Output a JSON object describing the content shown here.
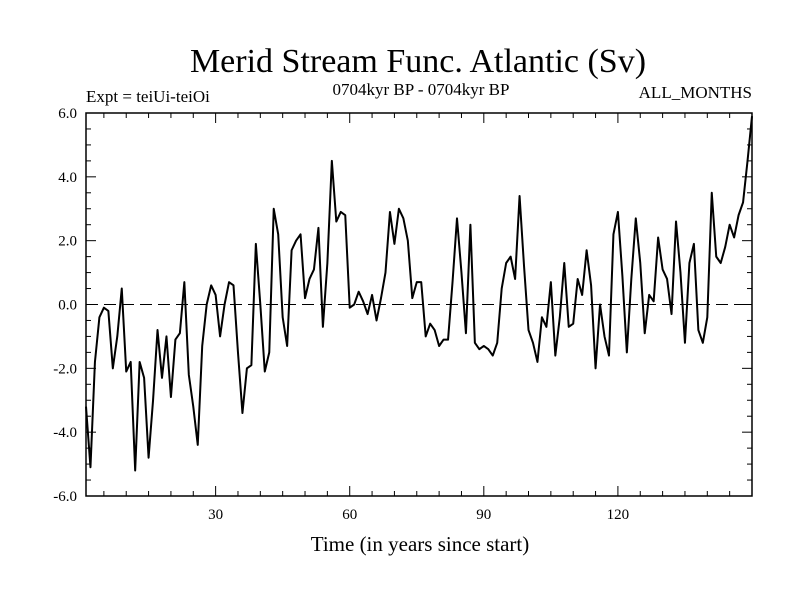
{
  "chart_data": {
    "type": "line",
    "title": "Merid Stream Func. Atlantic (Sv)",
    "subtitle_left": "Expt = teiUi-teiOi",
    "subtitle_center": "0704kyr BP - 0704kyr BP",
    "subtitle_right": "ALL_MONTHS",
    "xlabel": "Time (in years since start)",
    "ylabel": "",
    "xlim": [
      1,
      150
    ],
    "ylim": [
      -6,
      6
    ],
    "xticks": [
      30,
      60,
      90,
      120
    ],
    "xtick_labels": [
      "30",
      "60",
      "90",
      "120"
    ],
    "yticks": [
      6,
      4,
      2,
      0,
      -2,
      -4,
      -6
    ],
    "ytick_labels": [
      "6.0",
      "4.0",
      "2.0",
      "0.0",
      "-2.0",
      "-4.0",
      "-6.0"
    ],
    "reference_line": 0,
    "series": [
      {
        "name": "Merid Stream Func.",
        "color": "#000000",
        "x": [
          1,
          2,
          3,
          4,
          5,
          6,
          7,
          8,
          9,
          10,
          11,
          12,
          13,
          14,
          15,
          16,
          17,
          18,
          19,
          20,
          21,
          22,
          23,
          24,
          25,
          26,
          27,
          28,
          29,
          30,
          31,
          32,
          33,
          34,
          35,
          36,
          37,
          38,
          39,
          40,
          41,
          42,
          43,
          44,
          45,
          46,
          47,
          48,
          49,
          50,
          51,
          52,
          53,
          54,
          55,
          56,
          57,
          58,
          59,
          60,
          61,
          62,
          63,
          64,
          65,
          66,
          67,
          68,
          69,
          70,
          71,
          72,
          73,
          74,
          75,
          76,
          77,
          78,
          79,
          80,
          81,
          82,
          83,
          84,
          85,
          86,
          87,
          88,
          89,
          90,
          91,
          92,
          93,
          94,
          95,
          96,
          97,
          98,
          99,
          100,
          101,
          102,
          103,
          104,
          105,
          106,
          107,
          108,
          109,
          110,
          111,
          112,
          113,
          114,
          115,
          116,
          117,
          118,
          119,
          120,
          121,
          122,
          123,
          124,
          125,
          126,
          127,
          128,
          129,
          130,
          131,
          132,
          133,
          134,
          135,
          136,
          137,
          138,
          139,
          140,
          141,
          142,
          143,
          144,
          145,
          146,
          147,
          148,
          149,
          150
        ],
        "values": [
          -3.2,
          -5.1,
          -1.8,
          -0.4,
          -0.1,
          -0.2,
          -2.0,
          -1.0,
          0.5,
          -2.1,
          -1.8,
          -5.2,
          -1.8,
          -2.3,
          -4.8,
          -3.0,
          -0.8,
          -2.3,
          -1.0,
          -2.9,
          -1.1,
          -0.9,
          0.7,
          -2.2,
          -3.2,
          -4.4,
          -1.3,
          0.0,
          0.6,
          0.3,
          -1.0,
          0.0,
          0.7,
          0.6,
          -1.5,
          -3.4,
          -2.0,
          -1.9,
          1.9,
          0.0,
          -2.1,
          -1.5,
          3.0,
          2.2,
          -0.4,
          -1.3,
          1.7,
          2.0,
          2.2,
          0.2,
          0.8,
          1.1,
          2.4,
          -0.7,
          1.3,
          4.5,
          2.6,
          2.9,
          2.8,
          -0.1,
          0.0,
          0.4,
          0.1,
          -0.3,
          0.3,
          -0.5,
          0.2,
          1.0,
          2.9,
          1.9,
          3.0,
          2.7,
          2.0,
          0.2,
          0.7,
          0.7,
          -1.0,
          -0.6,
          -0.8,
          -1.3,
          -1.1,
          -1.1,
          0.7,
          2.7,
          1.0,
          -0.9,
          2.5,
          -1.2,
          -1.4,
          -1.3,
          -1.4,
          -1.6,
          -1.2,
          0.5,
          1.3,
          1.5,
          0.8,
          3.4,
          1.2,
          -0.8,
          -1.2,
          -1.8,
          -0.4,
          -0.7,
          0.7,
          -1.6,
          -0.4,
          1.3,
          -0.7,
          -0.6,
          0.8,
          0.3,
          1.7,
          0.6,
          -2.0,
          0.0,
          -1.0,
          -1.6,
          2.2,
          2.9,
          0.9,
          -1.5,
          0.8,
          2.7,
          1.3,
          -0.9,
          0.3,
          0.1,
          2.1,
          1.1,
          0.8,
          -0.3,
          2.6,
          1.0,
          -1.2,
          1.3,
          1.9,
          -0.8,
          -1.2,
          -0.4,
          3.5,
          1.5,
          1.3,
          1.8,
          2.5,
          2.1,
          2.8,
          3.2,
          4.5,
          5.9
        ]
      }
    ]
  }
}
